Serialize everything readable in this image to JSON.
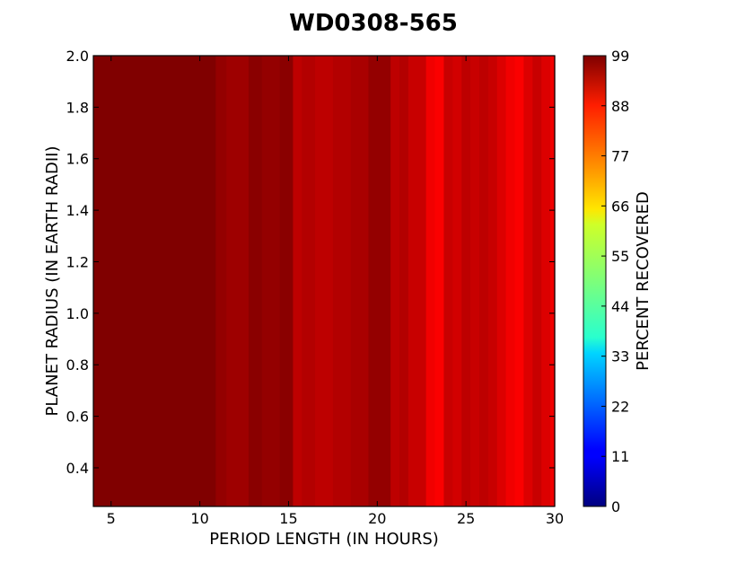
{
  "chart_data": {
    "type": "heatmap",
    "title": "WD0308-565",
    "xlabel": "PERIOD LENGTH (IN HOURS)",
    "ylabel": "PLANET RADIUS (IN EARTH RADII)",
    "xlim": [
      4,
      30
    ],
    "ylim": [
      0.25,
      2.0
    ],
    "xticks": [
      "5",
      "10",
      "15",
      "20",
      "25",
      "30"
    ],
    "yticks": [
      "0.4",
      "0.6",
      "0.8",
      "1.0",
      "1.2",
      "1.4",
      "1.6",
      "1.8",
      "2.0"
    ],
    "colorbar": {
      "label": "PERCENT RECOVERED",
      "range": [
        0,
        99
      ],
      "ticks": [
        "0",
        "11",
        "22",
        "33",
        "44",
        "55",
        "66",
        "77",
        "88",
        "99"
      ],
      "colormap": "jet"
    },
    "x": [
      4,
      5,
      6,
      7,
      8,
      9,
      10,
      10.8,
      11,
      12,
      12.5,
      13,
      14,
      15,
      15.5,
      16,
      17,
      18,
      19,
      20,
      20.5,
      21,
      21.5,
      22,
      22.5,
      23,
      23.5,
      24,
      24.5,
      25,
      25.5,
      26,
      26.5,
      27,
      27.5,
      28,
      28.5,
      29,
      29.5,
      30
    ],
    "percent_recovered": [
      99,
      99,
      99,
      99,
      99,
      99,
      99,
      99,
      97,
      96,
      96,
      98,
      97,
      98,
      93,
      94,
      93,
      94,
      95,
      97,
      97,
      93,
      94,
      92,
      92,
      88,
      87,
      92,
      91,
      93,
      92,
      93,
      92,
      90,
      88,
      87,
      90,
      92,
      90,
      88
    ]
  }
}
